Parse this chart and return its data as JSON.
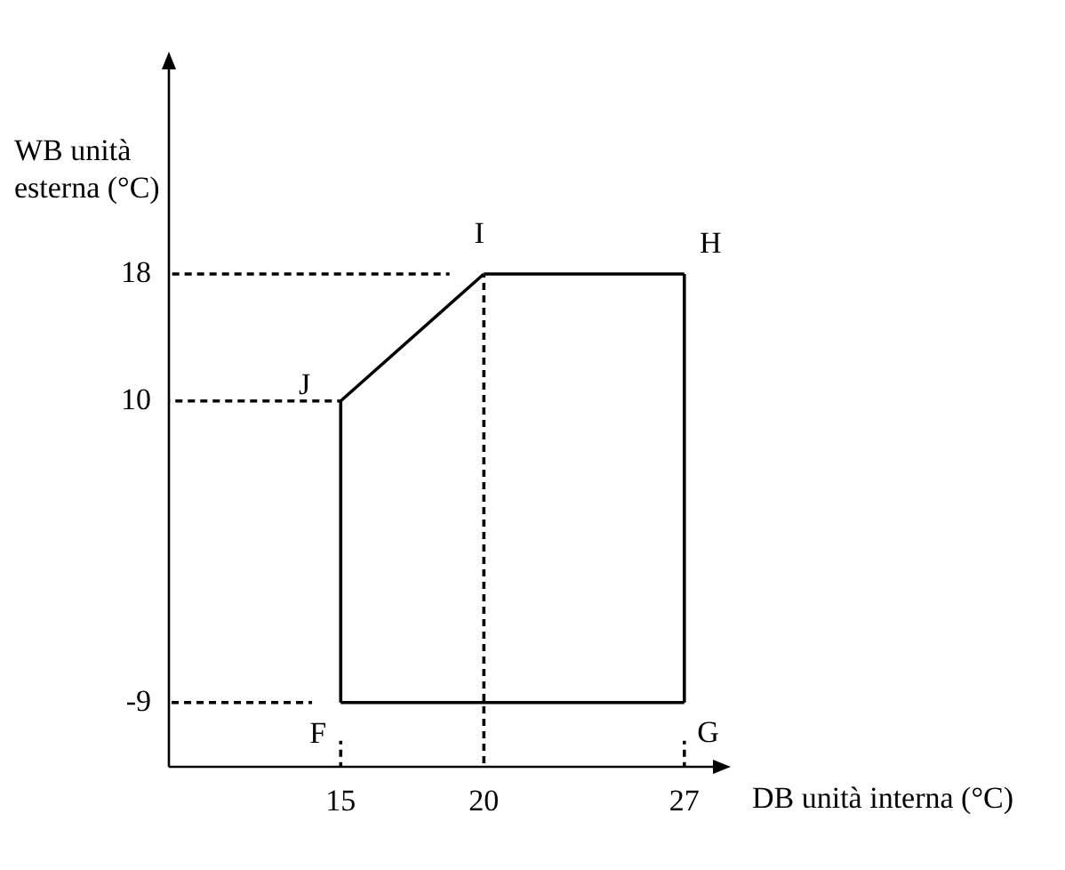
{
  "chart_data": {
    "type": "line",
    "xlabel": "DB unità interna (°C)",
    "ylabel": "WB unità esterna (°C)",
    "xlim": [
      9,
      28
    ],
    "xticks": [
      15,
      20,
      27
    ],
    "ylim": [
      -13,
      31
    ],
    "yticks": [
      -9,
      10,
      18
    ],
    "grid": false,
    "legend": false,
    "marker": "none",
    "series": [
      {
        "color": "#000000",
        "line_style": "solid",
        "x": [
          15,
          27
        ],
        "values": [
          -9,
          -9
        ]
      },
      {
        "color": "#000000",
        "line_style": "solid",
        "x": [
          27,
          27
        ],
        "values": [
          -9,
          18
        ]
      },
      {
        "color": "#000000",
        "line_style": "solid",
        "x": [
          20,
          27
        ],
        "values": [
          18,
          18
        ]
      },
      {
        "color": "#000000",
        "line_style": "solid",
        "x": [
          15,
          20
        ],
        "values": [
          10,
          18
        ]
      },
      {
        "color": "#000000",
        "line_style": "solid",
        "x": [
          15,
          15
        ],
        "values": [
          -9,
          10
        ]
      },
      {
        "color": "#000000",
        "line_style": "dashed",
        "x": [
          9,
          18.8
        ],
        "values": [
          18,
          18
        ]
      },
      {
        "color": "#000000",
        "line_style": "dashed",
        "x": [
          9,
          15
        ],
        "values": [
          10,
          10
        ]
      },
      {
        "color": "#000000",
        "line_style": "dashed",
        "x": [
          9,
          14
        ],
        "values": [
          -9,
          -9
        ]
      },
      {
        "color": "#000000",
        "line_style": "dashed",
        "x": [
          15,
          15
        ],
        "values": [
          -13,
          -11.4
        ]
      },
      {
        "color": "#000000",
        "line_style": "dashed",
        "x": [
          20,
          20
        ],
        "values": [
          -13,
          18
        ]
      },
      {
        "color": "#000000",
        "line_style": "dashed",
        "x": [
          27,
          27
        ],
        "values": [
          -13,
          -11.4
        ]
      }
    ],
    "annotations": [
      {
        "text": "F",
        "x": 15,
        "y": -9
      },
      {
        "text": "G",
        "x": 27,
        "y": -9
      },
      {
        "text": "H",
        "x": 27,
        "y": 18
      },
      {
        "text": "I",
        "x": 20,
        "y": 18
      },
      {
        "text": "J",
        "x": 15,
        "y": 10
      }
    ]
  }
}
